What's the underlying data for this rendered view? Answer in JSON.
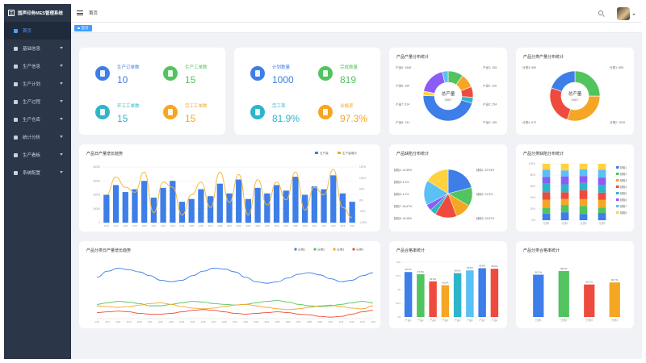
{
  "app": {
    "title": "国声印务MES管理系统",
    "logo_glyph": "工"
  },
  "sidebar": {
    "items": [
      {
        "label": "首页",
        "active": true,
        "expandable": false
      },
      {
        "label": "基础信息",
        "active": false,
        "expandable": true
      },
      {
        "label": "生产信息",
        "active": false,
        "expandable": true
      },
      {
        "label": "生产计划",
        "active": false,
        "expandable": true
      },
      {
        "label": "生产过程",
        "active": false,
        "expandable": true
      },
      {
        "label": "生产仓库",
        "active": false,
        "expandable": true
      },
      {
        "label": "统计分析",
        "active": false,
        "expandable": true
      },
      {
        "label": "生产看板",
        "active": false,
        "expandable": true
      },
      {
        "label": "系统配置",
        "active": false,
        "expandable": true
      }
    ]
  },
  "topbar": {
    "breadcrumb": "首页"
  },
  "tags": {
    "active": "首页"
  },
  "colors": {
    "blue": "#3d7ee8",
    "green": "#52c45f",
    "teal": "#2fb5c9",
    "orange": "#f5a623",
    "red": "#ee4b3e",
    "yellow": "#ffd23f",
    "purple": "#8b5cf6",
    "lightblue": "#5bc0f5",
    "sidebar": "#2b3649",
    "accent": "#409eff"
  },
  "stats_left": [
    {
      "label": "生产订单数",
      "value": "10",
      "color": "#3d7ee8",
      "icon": "document-icon"
    },
    {
      "label": "生产工单数",
      "value": "15",
      "color": "#52c45f",
      "icon": "document-icon"
    },
    {
      "label": "开工工单数",
      "value": "15",
      "color": "#2fb5c9",
      "icon": "document-icon"
    },
    {
      "label": "完工工单数",
      "value": "15",
      "color": "#f5a623",
      "icon": "document-icon"
    }
  ],
  "stats_right": [
    {
      "label": "计划数量",
      "value": "1000",
      "color": "#3d7ee8",
      "icon": "document-icon"
    },
    {
      "label": "完成数量",
      "value": "819",
      "color": "#52c45f",
      "icon": "document-icon"
    },
    {
      "label": "完工率",
      "value": "81.9%",
      "color": "#2fb5c9",
      "icon": "document-icon"
    },
    {
      "label": "合格率",
      "value": "97.3%",
      "color": "#f5a623",
      "icon": "document-icon"
    }
  ],
  "charts": {
    "donut1": {
      "title": "产品产量分布统计",
      "center_label": "总产量",
      "center_value": "3407"
    },
    "donut2": {
      "title": "产品分类产量分布统计",
      "center_label": "总产量",
      "center_value": "3407"
    },
    "daily_bar": {
      "title": "产品日产量增长趋势",
      "legend": [
        "日产量",
        "生产量增长"
      ]
    },
    "pie": {
      "title": "产品缺陷分布统计"
    },
    "stacked": {
      "title": "产品分类缺陷分布统计"
    },
    "lines": {
      "title": "产品分类日产量增长趋势",
      "legend": [
        "分类1",
        "分类2",
        "分类3",
        "分类4"
      ]
    },
    "pass_rate": {
      "title": "产品合格率统计"
    },
    "class_pass": {
      "title": "产品分类合格率统计"
    }
  },
  "chart_data": [
    {
      "type": "pie",
      "title": "产品产量分布统计",
      "labels": [
        "产品1",
        "产品2",
        "产品3",
        "产品4",
        "产品5",
        "产品6",
        "产品7",
        "产品8"
      ],
      "values": [
        335,
        310,
        234,
        135,
        1548,
        100,
        614,
        131
      ],
      "colors": [
        "#52c45f",
        "#f5a623",
        "#ee4b3e",
        "#2fb5c9",
        "#3d7ee8",
        "#ffd23f",
        "#8b5cf6",
        "#5bc0f5"
      ]
    },
    {
      "type": "pie",
      "title": "产品分类产量分布统计",
      "labels": [
        "分类1",
        "分类2",
        "分类3",
        "分类4"
      ],
      "values": [
        855,
        1020,
        860,
        672
      ],
      "colors": [
        "#52c45f",
        "#f5a623",
        "#ee4b3e",
        "#3d7ee8"
      ]
    },
    {
      "type": "bar",
      "title": "产品日产量增长趋势",
      "categories": [
        "2/16",
        "2/17",
        "2/18",
        "2/19",
        "2/20",
        "2/21",
        "2/22",
        "2/23",
        "2/24",
        "2/25",
        "2/26",
        "2/27",
        "2/28",
        "3/01",
        "3/02",
        "3/03",
        "3/04",
        "3/05",
        "3/06",
        "3/07",
        "3/08",
        "3/09",
        "3/10",
        "3/11",
        "3/12",
        "3/13",
        "3/14"
      ],
      "series": [
        {
          "name": "日产量",
          "values": [
            20000,
            27000,
            22000,
            24000,
            30000,
            18000,
            25000,
            30000,
            15000,
            17000,
            24000,
            19000,
            28000,
            21000,
            31000,
            17000,
            25000,
            21000,
            27000,
            23000,
            33000,
            20000,
            26000,
            24000,
            34000,
            21000,
            15000
          ]
        },
        {
          "name": "生产量增长",
          "values": [
            10,
            80,
            40,
            20,
            100,
            -60,
            60,
            40,
            -70,
            10,
            60,
            -40,
            100,
            -20,
            90,
            -70,
            70,
            -30,
            60,
            -10,
            100,
            -50,
            40,
            10,
            110,
            -40,
            -80
          ]
        }
      ],
      "ylim_left": [
        0,
        40000
      ],
      "yticks_left": [
        0,
        10000,
        20000,
        30000,
        40000
      ],
      "ylim_right": [
        -100,
        120
      ],
      "yticks_right": [
        "-100%",
        "-50%",
        "0%",
        "50%",
        "100%",
        "120%"
      ]
    },
    {
      "type": "pie",
      "title": "产品缺陷分布统计",
      "labels": [
        "缺陷1",
        "缺陷2",
        "缺陷3",
        "缺陷4",
        "缺陷5",
        "缺陷6",
        "缺陷7",
        "缺陷8"
      ],
      "values": [
        20.93,
        12.5,
        10.87,
        14.55,
        4.2,
        4.2,
        16.67,
        16.08
      ],
      "display": [
        "20.93%",
        "12.5%",
        "10.87%",
        "14.55%",
        "4.2%",
        "4.2%",
        "16.67%",
        "16.08%"
      ],
      "colors": [
        "#3d7ee8",
        "#52c45f",
        "#f5a623",
        "#ee4b3e",
        "#2fb5c9",
        "#8b5cf6",
        "#5bc0f5",
        "#ffd23f"
      ]
    },
    {
      "type": "bar",
      "stacked": true,
      "title": "产品分类缺陷分布统计",
      "categories": [
        "分类1",
        "分类2",
        "分类3",
        "分类4"
      ],
      "series": [
        {
          "name": "缺陷1",
          "values": [
            10,
            12,
            9,
            11
          ]
        },
        {
          "name": "缺陷2",
          "values": [
            9,
            11,
            12,
            8
          ]
        },
        {
          "name": "缺陷3",
          "values": [
            12,
            9,
            10,
            12
          ]
        },
        {
          "name": "缺陷4",
          "values": [
            11,
            10,
            13,
            11
          ]
        },
        {
          "name": "缺陷5",
          "values": [
            13,
            12,
            11,
            12
          ]
        },
        {
          "name": "缺陷6",
          "values": [
            10,
            12,
            10,
            11
          ]
        },
        {
          "name": "缺陷7",
          "values": [
            11,
            9,
            10,
            12
          ]
        },
        {
          "name": "缺陷8",
          "values": [
            9,
            10,
            8,
            9
          ]
        }
      ],
      "colors": [
        "#3d7ee8",
        "#52c45f",
        "#f5a623",
        "#ee4b3e",
        "#2fb5c9",
        "#8b5cf6",
        "#5bc0f5",
        "#ffd23f"
      ],
      "ylim": [
        0,
        100
      ],
      "yticks": [
        "0%",
        "20%",
        "40%",
        "60%",
        "80%",
        "100%"
      ]
    },
    {
      "type": "line",
      "title": "产品分类日产量增长趋势",
      "categories": [
        "2/16",
        "2/17",
        "2/18",
        "2/19",
        "2/20",
        "2/21",
        "2/22",
        "2/23",
        "2/24",
        "2/25",
        "2/26",
        "2/27",
        "2/28",
        "3/01",
        "3/02",
        "3/03",
        "3/04",
        "3/05",
        "3/06",
        "3/07",
        "3/08",
        "3/09",
        "3/10",
        "3/11",
        "3/12",
        "3/13",
        "3/14"
      ],
      "series": [
        {
          "name": "分类1",
          "values": [
            50,
            58,
            62,
            60,
            57,
            52,
            46,
            44,
            46,
            52,
            58,
            62,
            61,
            57,
            50,
            44,
            42,
            44,
            49,
            54,
            56,
            53,
            48,
            44,
            46,
            52,
            56
          ]
        },
        {
          "name": "分类2",
          "values": [
            14,
            16,
            18,
            17,
            15,
            12,
            12,
            14,
            16,
            18,
            17,
            15,
            14,
            13,
            14,
            16,
            18,
            19,
            17,
            14,
            12,
            11,
            12,
            14,
            16,
            18,
            16
          ]
        },
        {
          "name": "分类3",
          "values": [
            12,
            11,
            10,
            11,
            13,
            15,
            16,
            14,
            11,
            9,
            8,
            9,
            11,
            13,
            14,
            12,
            10,
            8,
            7,
            8,
            10,
            12,
            13,
            11,
            9,
            8,
            12
          ]
        },
        {
          "name": "分类4",
          "values": [
            3,
            4,
            5,
            4,
            2,
            1,
            1,
            2,
            4,
            6,
            7,
            6,
            4,
            2,
            1,
            2,
            3,
            4,
            3,
            1,
            0,
            -2,
            -3,
            -2,
            1,
            4,
            6
          ]
        }
      ],
      "ylim": [
        -5,
        70
      ]
    },
    {
      "type": "bar",
      "title": "产品合格率统计",
      "categories": [
        "产品1",
        "产品2",
        "产品3",
        "产品4",
        "产品5",
        "产品6",
        "产品7",
        "产品8"
      ],
      "values": [
        98.2,
        97.8,
        96.5,
        95.8,
        98.0,
        98.5,
        98.9,
        98.8
      ],
      "display": [
        "98.2%",
        "97.8%",
        "96.5%",
        "95.8%",
        "98.0%",
        "98.5%",
        "98.9%",
        "98.8%"
      ],
      "colors": [
        "#3d7ee8",
        "#52c45f",
        "#ee4b3e",
        "#f5a623",
        "#2fb5c9",
        "#5bc0f5",
        "#3d7ee8",
        "#ee4b3e"
      ],
      "ylim": [
        90,
        100
      ],
      "yticks": [
        "90",
        "92.5",
        "95",
        "97.5",
        "100"
      ]
    },
    {
      "type": "bar",
      "title": "产品分类合格率统计",
      "categories": [
        "分类1",
        "分类2",
        "分类3",
        "分类4"
      ],
      "values": [
        98.2,
        98.9,
        96.3,
        96.7
      ],
      "display": [
        "98.2%",
        "98.9%",
        "96.3%",
        "96.7%"
      ],
      "colors": [
        "#3d7ee8",
        "#52c45f",
        "#ee4b3e",
        "#f5a623"
      ]
    }
  ]
}
